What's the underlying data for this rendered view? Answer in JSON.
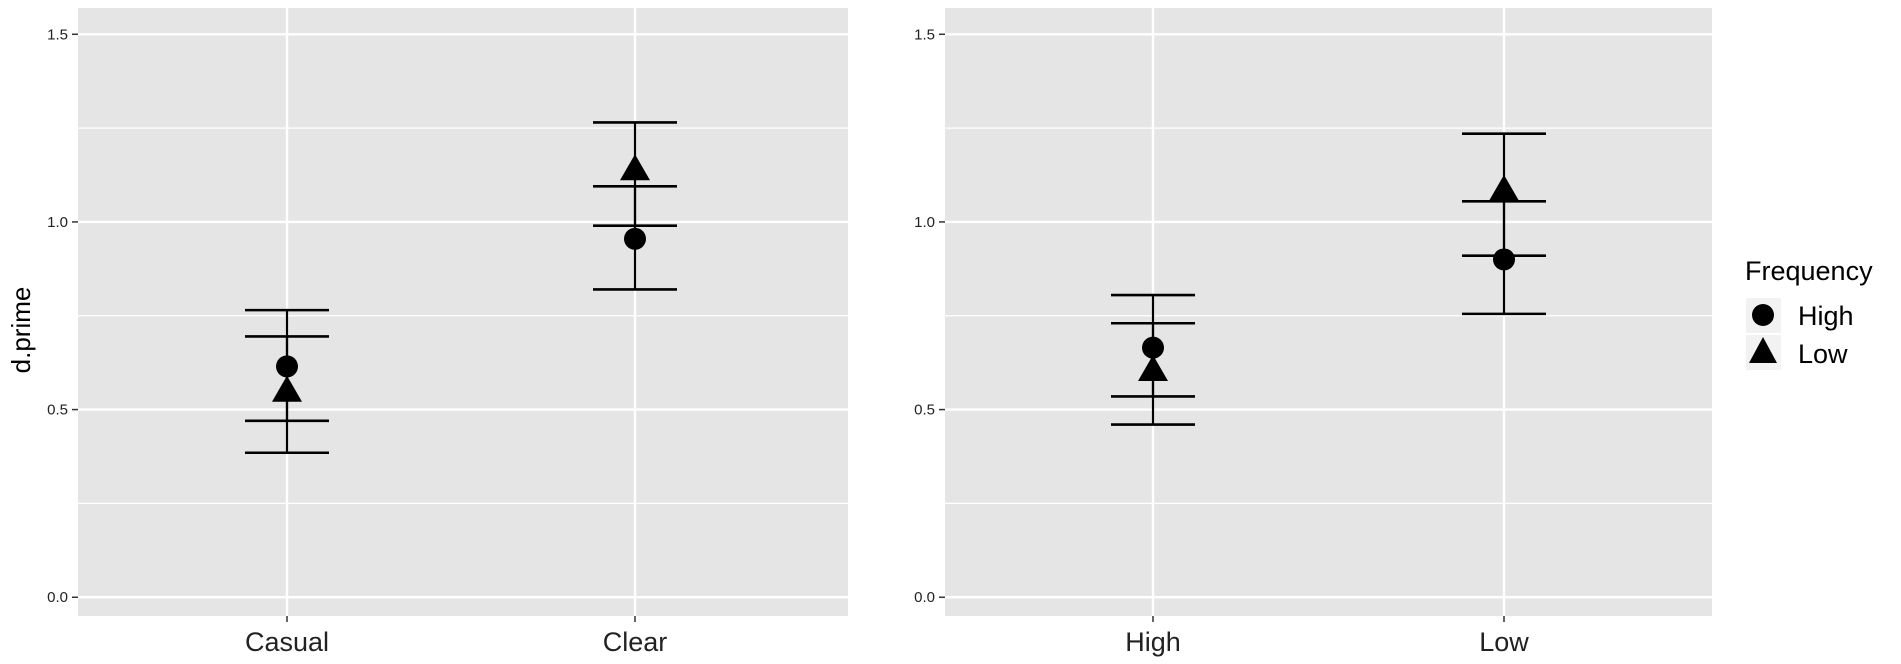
{
  "chart_data": [
    {
      "type": "scatter",
      "title": "",
      "xlabel": "",
      "ylabel": "d.prime",
      "categories": [
        "Casual",
        "Clear"
      ],
      "ylim": [
        -0.05,
        1.57
      ],
      "yticks": [
        "0.0",
        "0.5",
        "1.0",
        "1.5"
      ],
      "grid": true,
      "series": [
        {
          "name": "High",
          "marker": "circle",
          "values": [
            0.615,
            0.955
          ],
          "error_low": [
            0.47,
            0.82
          ],
          "error_high": [
            0.765,
            1.095
          ]
        },
        {
          "name": "Low",
          "marker": "triangle",
          "values": [
            0.545,
            1.135
          ],
          "error_low": [
            0.385,
            0.99
          ],
          "error_high": [
            0.695,
            1.265
          ]
        }
      ]
    },
    {
      "type": "scatter",
      "title": "",
      "xlabel": "",
      "ylabel": "",
      "categories": [
        "High",
        "Low"
      ],
      "ylim": [
        -0.05,
        1.57
      ],
      "yticks": [
        "0.0",
        "0.5",
        "1.0",
        "1.5"
      ],
      "grid": true,
      "series": [
        {
          "name": "High",
          "marker": "circle",
          "values": [
            0.665,
            0.9
          ],
          "error_low": [
            0.535,
            0.755
          ],
          "error_high": [
            0.805,
            1.055
          ]
        },
        {
          "name": "Low",
          "marker": "triangle",
          "values": [
            0.6,
            1.08
          ],
          "error_low": [
            0.46,
            0.91
          ],
          "error_high": [
            0.73,
            1.235
          ]
        }
      ]
    }
  ],
  "legend": {
    "title": "Frequency",
    "placement": "right",
    "items": [
      {
        "label": "High",
        "marker": "circle"
      },
      {
        "label": "Low",
        "marker": "triangle"
      }
    ]
  },
  "colors": {
    "panel_background": "#e5e5e5",
    "grid": "#ffffff",
    "marks": "#000000",
    "tick_text": "#222222"
  }
}
